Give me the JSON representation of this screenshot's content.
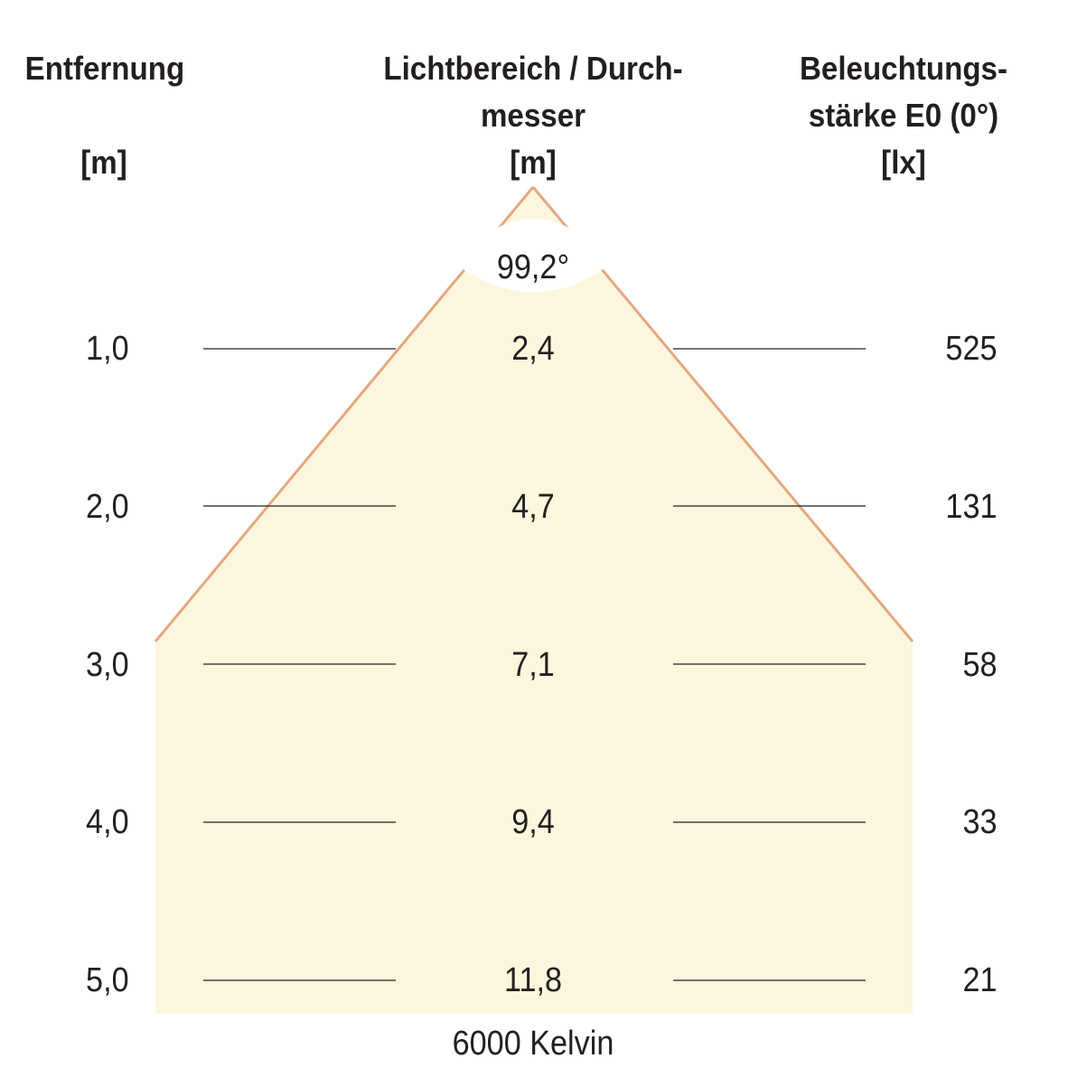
{
  "headers": {
    "distance": [
      "Entfernung",
      "",
      "[m]"
    ],
    "diameter": [
      "Lichtbereich / Durch-",
      "messer",
      "[m]"
    ],
    "illuminance": [
      "Beleuchtungs-",
      "stärke E0 (0°)",
      "[lx]"
    ]
  },
  "beam_angle": "99,2°",
  "rows": [
    {
      "distance": "1,0",
      "diameter": "2,4",
      "lux": "525"
    },
    {
      "distance": "2,0",
      "diameter": "4,7",
      "lux": "131"
    },
    {
      "distance": "3,0",
      "diameter": "7,1",
      "lux": "58"
    },
    {
      "distance": "4,0",
      "diameter": "9,4",
      "lux": "33"
    },
    {
      "distance": "5,0",
      "diameter": "11,8",
      "lux": "21"
    }
  ],
  "color_temperature": "6000 Kelvin",
  "colors": {
    "cone_fill": "#fdf6de",
    "cone_edge": "#e3a880",
    "rule": "#231f20",
    "text": "#231f20"
  }
}
